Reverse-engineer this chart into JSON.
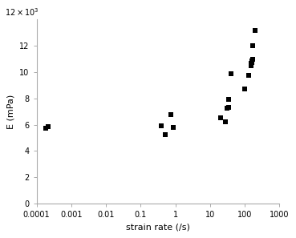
{
  "x": [
    0.00018,
    0.00022,
    0.4,
    0.5,
    0.75,
    0.85,
    20,
    28,
    30,
    34,
    35,
    40,
    100,
    130,
    150,
    155,
    160,
    163,
    165,
    170,
    200
  ],
  "y": [
    5750,
    5850,
    5900,
    5250,
    6800,
    5800,
    6500,
    6250,
    7250,
    7300,
    7900,
    9900,
    8750,
    9750,
    10500,
    10700,
    10750,
    10850,
    10950,
    12000,
    13200
  ],
  "xlabel": "strain rate (/s)",
  "ylabel": "E (mPa)",
  "xlim": [
    0.0001,
    1000
  ],
  "ylim": [
    0,
    14000
  ],
  "yticks": [
    0,
    2000,
    4000,
    6000,
    8000,
    10000,
    12000
  ],
  "ytick_labels": [
    "0",
    "2",
    "4",
    "6",
    "8",
    "10",
    "12"
  ],
  "xtick_positions": [
    0.0001,
    0.001,
    0.01,
    0.1,
    1,
    10,
    100,
    1000
  ],
  "xtick_labels": [
    "0.0001",
    "0.001",
    "0.01",
    "0.1",
    "1",
    "10",
    "100",
    "1000"
  ],
  "marker": "s",
  "marker_color": "black",
  "marker_size": 5,
  "fig_color": "white",
  "spine_color": "#aaaaaa",
  "label_fontsize": 8,
  "tick_fontsize": 7
}
